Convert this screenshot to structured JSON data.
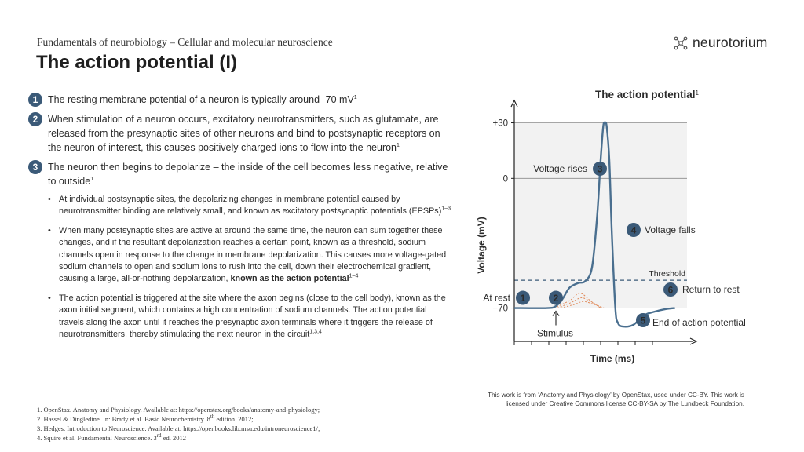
{
  "header": {
    "subtitle": "Fundamentals of neurobiology – Cellular and molecular neuroscience",
    "title": "The action potential (I)"
  },
  "logo": {
    "text": "neurotorium",
    "icon": "neurotorium-logo-icon"
  },
  "points": [
    {
      "num": "1",
      "text": "The resting membrane potential of a neuron is typically around -70 mV",
      "sup": "1"
    },
    {
      "num": "2",
      "text": "When stimulation of a neuron occurs, excitatory neurotransmitters, such as glutamate, are released from the presynaptic sites of other neurons and bind to postsynaptic receptors on the neuron of interest, this causes positively charged ions to flow into the neuron",
      "sup": "1"
    },
    {
      "num": "3",
      "text": "The neuron then begins to depolarize – the inside of the cell becomes less negative, relative to outside",
      "sup": "1"
    }
  ],
  "subpoints": [
    {
      "text": "At individual postsynaptic sites, the depolarizing changes in membrane potential caused by neurotransmitter binding are relatively small, and known as excitatory postsynaptic potentials (EPSPs)",
      "sup": "1–3"
    },
    {
      "text": "When many postsynaptic sites are active at around the same time, the neuron can sum together these changes, and if the resultant depolarization reaches a certain point, known as a threshold, sodium channels open in response to the change in membrane depolarization. This causes more voltage-gated sodium channels to open and sodium ions to rush into the cell, down their electrochemical gradient, causing a large, all-or-nothing depolarization, ",
      "bold": "known as the action potential",
      "sup": "1–4"
    },
    {
      "text": "The action potential is triggered at the site where the axon begins (close to the cell body), known as the axon initial segment, which contains a high concentration of sodium channels. The action potential travels along the axon until it reaches the presynaptic axon terminals where it triggers the release of neurotransmitters, thereby stimulating the next neuron in the circuit",
      "sup": "1,3,4"
    }
  ],
  "references": [
    {
      "text": "1. OpenStax. Anatomy and Physiology. Available at: https://openstax.org/books/anatomy-and-physiology;",
      "sup": ""
    },
    {
      "text": "2. Hassel & Dingledine. In: Brady et al. Basic Neurochemistry. 8",
      "sup": "th",
      "after": " edition. 2012;"
    },
    {
      "text": "3. Hedges. Introduction to Neuroscience. Available at: https://openbooks.lib.msu.edu/introneuroscience1/;",
      "sup": ""
    },
    {
      "text": "4. Squire et al. Fundamental Neuroscience. 3",
      "sup": "rd",
      "after": " ed. 2012"
    }
  ],
  "credit": "This work is from ‘Anatomy and Physiology’ by OpenStax, used under CC-BY. This work is licensed under Creative Commons license CC-BY-SA by The Lundbeck Foundation.",
  "chart_data": {
    "type": "line",
    "title": "The action potential",
    "title_sup": "1",
    "xlabel": "Time (ms)",
    "ylabel": "Voltage (mV)",
    "yticks": [
      {
        "value": 30,
        "label": "+30"
      },
      {
        "value": 0,
        "label": "0"
      },
      {
        "value": -70,
        "label": "−70"
      }
    ],
    "ylim": [
      -88,
      37
    ],
    "xlim": [
      0,
      10
    ],
    "x_tick_values": [
      0,
      1,
      2,
      3,
      4,
      5,
      6,
      7,
      8
    ],
    "threshold": {
      "value": -55,
      "label": "Threshold"
    },
    "series": [
      {
        "name": "",
        "points": [
          [
            0,
            -70
          ],
          [
            1.9,
            -70
          ],
          [
            2.4,
            -69
          ],
          [
            2.8,
            -65
          ],
          [
            3.2,
            -59
          ],
          [
            3.7,
            -56.5
          ],
          [
            4.1,
            -55.5
          ],
          [
            4.5,
            -48
          ],
          [
            4.8,
            -20
          ],
          [
            5.0,
            10
          ],
          [
            5.15,
            28
          ],
          [
            5.25,
            30
          ],
          [
            5.35,
            28
          ],
          [
            5.5,
            10
          ],
          [
            5.65,
            -30
          ],
          [
            5.85,
            -70
          ],
          [
            6.0,
            -78
          ],
          [
            6.3,
            -80
          ],
          [
            6.9,
            -79
          ],
          [
            7.5,
            -74
          ],
          [
            8.1,
            -72
          ],
          [
            8.8,
            -70.5
          ],
          [
            9.3,
            -70
          ]
        ]
      }
    ],
    "epsp_curves": [
      [
        [
          2.3,
          -70
        ],
        [
          3.2,
          -66
        ],
        [
          3.8,
          -62
        ],
        [
          4.4,
          -66
        ],
        [
          5.0,
          -70
        ]
      ],
      [
        [
          2.5,
          -70
        ],
        [
          3.3,
          -67
        ],
        [
          3.9,
          -64.5
        ],
        [
          4.5,
          -67
        ],
        [
          5.1,
          -70
        ]
      ],
      [
        [
          2.7,
          -70
        ],
        [
          3.5,
          -68
        ],
        [
          4.0,
          -66.5
        ],
        [
          4.6,
          -68
        ],
        [
          5.2,
          -70
        ]
      ]
    ],
    "annotations": [
      {
        "num": "1",
        "label": "At rest"
      },
      {
        "num": "2",
        "label": "Stimulus"
      },
      {
        "num": "3",
        "label": "Voltage rises"
      },
      {
        "num": "4",
        "label": "Voltage falls"
      },
      {
        "num": "5",
        "label": "End of action potential"
      },
      {
        "num": "6",
        "label": "Return to rest"
      }
    ],
    "grid": false,
    "colors": {
      "curve": "#4a6f8f",
      "marker": "#3b5a78",
      "band": "#f2f2f2",
      "threshold": "#3b5a78"
    }
  }
}
